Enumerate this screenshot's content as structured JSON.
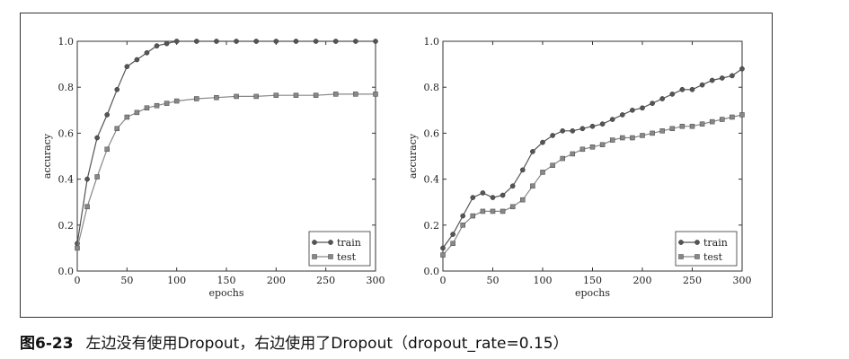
{
  "caption": {
    "figure_number": "图6-23",
    "text": "左边没有使用Dropout，右边使用了Dropout（dropout_rate=0.15）"
  },
  "colors": {
    "train": "#555555",
    "test": "#888888",
    "axis": "#333333"
  },
  "chart_data": [
    {
      "type": "line",
      "title": "",
      "xlabel": "epochs",
      "ylabel": "accuracy",
      "xlim": [
        0,
        300
      ],
      "ylim": [
        0.0,
        1.0
      ],
      "xticks": [
        "0",
        "50",
        "100",
        "150",
        "200",
        "250",
        "300"
      ],
      "yticks": [
        "0.0",
        "0.2",
        "0.4",
        "0.6",
        "0.8",
        "1.0"
      ],
      "legend_position": "bottom-right",
      "grid": false,
      "series": [
        {
          "name": "train",
          "marker": "circle",
          "x": [
            0,
            10,
            20,
            30,
            40,
            50,
            60,
            70,
            80,
            90,
            100,
            120,
            140,
            160,
            180,
            200,
            220,
            240,
            260,
            280,
            300
          ],
          "y": [
            0.12,
            0.4,
            0.58,
            0.68,
            0.79,
            0.89,
            0.92,
            0.95,
            0.98,
            0.99,
            1.0,
            1.0,
            1.0,
            1.0,
            1.0,
            1.0,
            1.0,
            1.0,
            1.0,
            1.0,
            1.0
          ]
        },
        {
          "name": "test",
          "marker": "square",
          "x": [
            0,
            10,
            20,
            30,
            40,
            50,
            60,
            70,
            80,
            90,
            100,
            120,
            140,
            160,
            180,
            200,
            220,
            240,
            260,
            280,
            300
          ],
          "y": [
            0.1,
            0.28,
            0.41,
            0.53,
            0.62,
            0.67,
            0.69,
            0.71,
            0.72,
            0.73,
            0.74,
            0.75,
            0.755,
            0.76,
            0.76,
            0.765,
            0.765,
            0.765,
            0.77,
            0.77,
            0.77
          ]
        }
      ]
    },
    {
      "type": "line",
      "title": "",
      "xlabel": "epochs",
      "ylabel": "accuracy",
      "xlim": [
        0,
        300
      ],
      "ylim": [
        0.0,
        1.0
      ],
      "xticks": [
        "0",
        "50",
        "100",
        "150",
        "200",
        "250",
        "300"
      ],
      "yticks": [
        "0.0",
        "0.2",
        "0.4",
        "0.6",
        "0.8",
        "1.0"
      ],
      "legend_position": "bottom-right",
      "grid": false,
      "series": [
        {
          "name": "train",
          "marker": "circle",
          "x": [
            0,
            10,
            20,
            30,
            40,
            50,
            60,
            70,
            80,
            90,
            100,
            110,
            120,
            130,
            140,
            150,
            160,
            170,
            180,
            190,
            200,
            210,
            220,
            230,
            240,
            250,
            260,
            270,
            280,
            290,
            300
          ],
          "y": [
            0.1,
            0.16,
            0.24,
            0.32,
            0.34,
            0.32,
            0.33,
            0.37,
            0.44,
            0.52,
            0.56,
            0.59,
            0.61,
            0.61,
            0.62,
            0.63,
            0.64,
            0.66,
            0.68,
            0.7,
            0.71,
            0.73,
            0.75,
            0.77,
            0.79,
            0.79,
            0.81,
            0.83,
            0.84,
            0.85,
            0.88
          ]
        },
        {
          "name": "test",
          "marker": "square",
          "x": [
            0,
            10,
            20,
            30,
            40,
            50,
            60,
            70,
            80,
            90,
            100,
            110,
            120,
            130,
            140,
            150,
            160,
            170,
            180,
            190,
            200,
            210,
            220,
            230,
            240,
            250,
            260,
            270,
            280,
            290,
            300
          ],
          "y": [
            0.07,
            0.12,
            0.2,
            0.24,
            0.26,
            0.26,
            0.26,
            0.28,
            0.31,
            0.37,
            0.43,
            0.46,
            0.49,
            0.51,
            0.53,
            0.54,
            0.55,
            0.57,
            0.58,
            0.58,
            0.59,
            0.6,
            0.61,
            0.62,
            0.63,
            0.63,
            0.64,
            0.65,
            0.66,
            0.67,
            0.68
          ]
        }
      ]
    }
  ]
}
